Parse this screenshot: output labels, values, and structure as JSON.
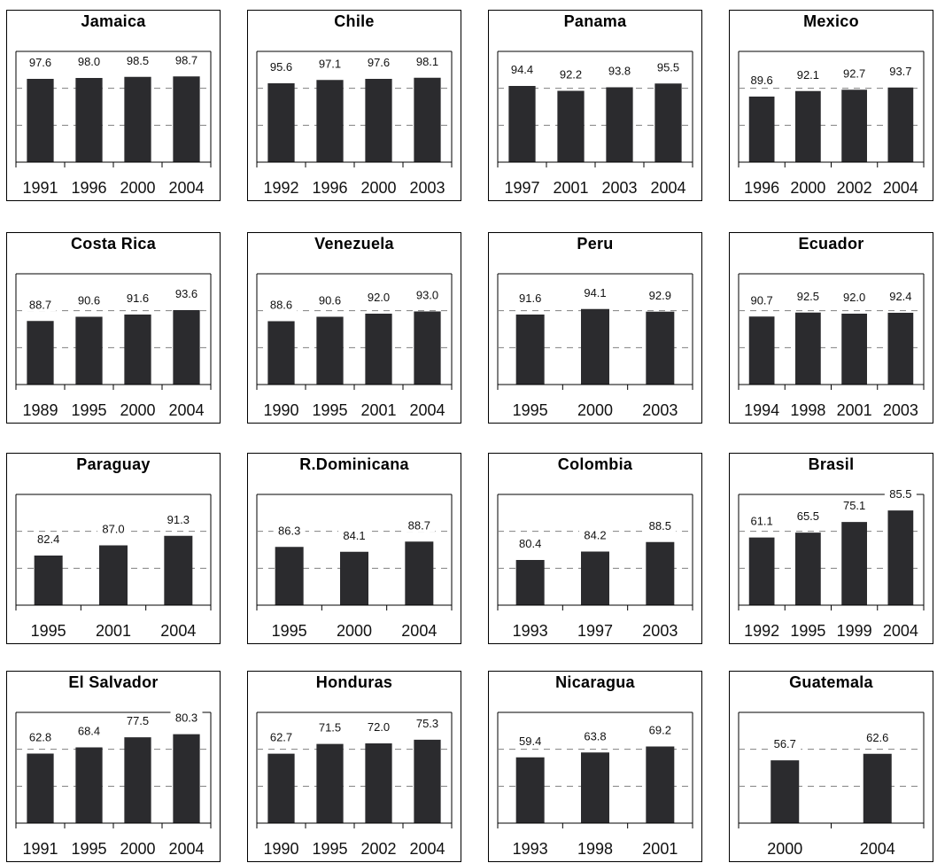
{
  "chart_data": [
    {
      "type": "bar",
      "title": "Jamaica",
      "categories": [
        "1991",
        "1996",
        "2000",
        "2004"
      ],
      "values": [
        97.6,
        98.0,
        98.5,
        98.7
      ],
      "labels": [
        "97.6",
        "98.0",
        "98.5",
        "98.7"
      ],
      "ylim": [
        60,
        110
      ],
      "grid": true
    },
    {
      "type": "bar",
      "title": "Chile",
      "categories": [
        "1992",
        "1996",
        "2000",
        "2003"
      ],
      "values": [
        95.6,
        97.1,
        97.6,
        98.1
      ],
      "labels": [
        "95.6",
        "97.1",
        "97.6",
        "98.1"
      ],
      "ylim": [
        60,
        110
      ],
      "grid": true
    },
    {
      "type": "bar",
      "title": "Panama",
      "categories": [
        "1997",
        "2001",
        "2003",
        "2004"
      ],
      "values": [
        94.4,
        92.2,
        93.8,
        95.5
      ],
      "labels": [
        "94.4",
        "92.2",
        "93.8",
        "95.5"
      ],
      "ylim": [
        60,
        110
      ],
      "grid": true
    },
    {
      "type": "bar",
      "title": "Mexico",
      "categories": [
        "1996",
        "2000",
        "2002",
        "2004"
      ],
      "values": [
        89.6,
        92.1,
        92.7,
        93.7
      ],
      "labels": [
        "89.6",
        "92.1",
        "92.7",
        "93.7"
      ],
      "ylim": [
        60,
        110
      ],
      "grid": true
    },
    {
      "type": "bar",
      "title": "Costa Rica",
      "categories": [
        "1989",
        "1995",
        "2000",
        "2004"
      ],
      "values": [
        88.7,
        90.6,
        91.6,
        93.6
      ],
      "labels": [
        "88.7",
        "90.6",
        "91.6",
        "93.6"
      ],
      "ylim": [
        60,
        110
      ],
      "grid": true
    },
    {
      "type": "bar",
      "title": "Venezuela",
      "categories": [
        "1990",
        "1995",
        "2001",
        "2004"
      ],
      "values": [
        88.6,
        90.6,
        92.0,
        93.0
      ],
      "labels": [
        "88.6",
        "90.6",
        "92.0",
        "93.0"
      ],
      "ylim": [
        60,
        110
      ],
      "grid": true
    },
    {
      "type": "bar",
      "title": "Peru",
      "categories": [
        "1995",
        "2000",
        "2003"
      ],
      "values": [
        91.6,
        94.1,
        92.9
      ],
      "labels": [
        "91.6",
        "94.1",
        "92.9"
      ],
      "ylim": [
        60,
        110
      ],
      "grid": true
    },
    {
      "type": "bar",
      "title": "Ecuador",
      "categories": [
        "1994",
        "1998",
        "2001",
        "2003"
      ],
      "values": [
        90.7,
        92.5,
        92.0,
        92.4
      ],
      "labels": [
        "90.7",
        "92.5",
        "92.0",
        "92.4"
      ],
      "ylim": [
        60,
        110
      ],
      "grid": true
    },
    {
      "type": "bar",
      "title": "Paraguay",
      "categories": [
        "1995",
        "2001",
        "2004"
      ],
      "values": [
        82.4,
        87.0,
        91.3
      ],
      "labels": [
        "82.4",
        "87.0",
        "91.3"
      ],
      "ylim": [
        60,
        110
      ],
      "grid": true
    },
    {
      "type": "bar",
      "title": "R.Dominicana",
      "categories": [
        "1995",
        "2000",
        "2004"
      ],
      "values": [
        86.3,
        84.1,
        88.7
      ],
      "labels": [
        "86.3",
        "84.1",
        "88.7"
      ],
      "ylim": [
        60,
        110
      ],
      "grid": true
    },
    {
      "type": "bar",
      "title": "Colombia",
      "categories": [
        "1993",
        "1997",
        "2003"
      ],
      "values": [
        80.4,
        84.2,
        88.5
      ],
      "labels": [
        "80.4",
        "84.2",
        "88.5"
      ],
      "ylim": [
        60,
        110
      ],
      "grid": true
    },
    {
      "type": "bar",
      "title": "Brasil",
      "categories": [
        "1992",
        "1995",
        "1999",
        "2004"
      ],
      "values": [
        61.1,
        65.5,
        75.1,
        85.5
      ],
      "labels": [
        "61.1",
        "65.5",
        "75.1",
        "85.5"
      ],
      "ylim": [
        0,
        100
      ],
      "grid": true
    },
    {
      "type": "bar",
      "title": "El Salvador",
      "categories": [
        "1991",
        "1995",
        "2000",
        "2004"
      ],
      "values": [
        62.8,
        68.4,
        77.5,
        80.3
      ],
      "labels": [
        "62.8",
        "68.4",
        "77.5",
        "80.3"
      ],
      "ylim": [
        0,
        100
      ],
      "grid": true
    },
    {
      "type": "bar",
      "title": "Honduras",
      "categories": [
        "1990",
        "1995",
        "2002",
        "2004"
      ],
      "values": [
        62.7,
        71.5,
        72.0,
        75.3
      ],
      "labels": [
        "62.7",
        "71.5",
        "72.0",
        "75.3"
      ],
      "ylim": [
        0,
        100
      ],
      "grid": true
    },
    {
      "type": "bar",
      "title": "Nicaragua",
      "categories": [
        "1993",
        "1998",
        "2001"
      ],
      "values": [
        59.4,
        63.8,
        69.2
      ],
      "labels": [
        "59.4",
        "63.8",
        "69.2"
      ],
      "ylim": [
        0,
        100
      ],
      "grid": true
    },
    {
      "type": "bar",
      "title": "Guatemala",
      "categories": [
        "2000",
        "2004"
      ],
      "values": [
        56.7,
        62.6
      ],
      "labels": [
        "56.7",
        "62.6"
      ],
      "ylim": [
        0,
        100
      ],
      "grid": true
    }
  ],
  "colors": {
    "bar": "#2b2b2e",
    "grid": "#808080",
    "frame": "#000000"
  }
}
